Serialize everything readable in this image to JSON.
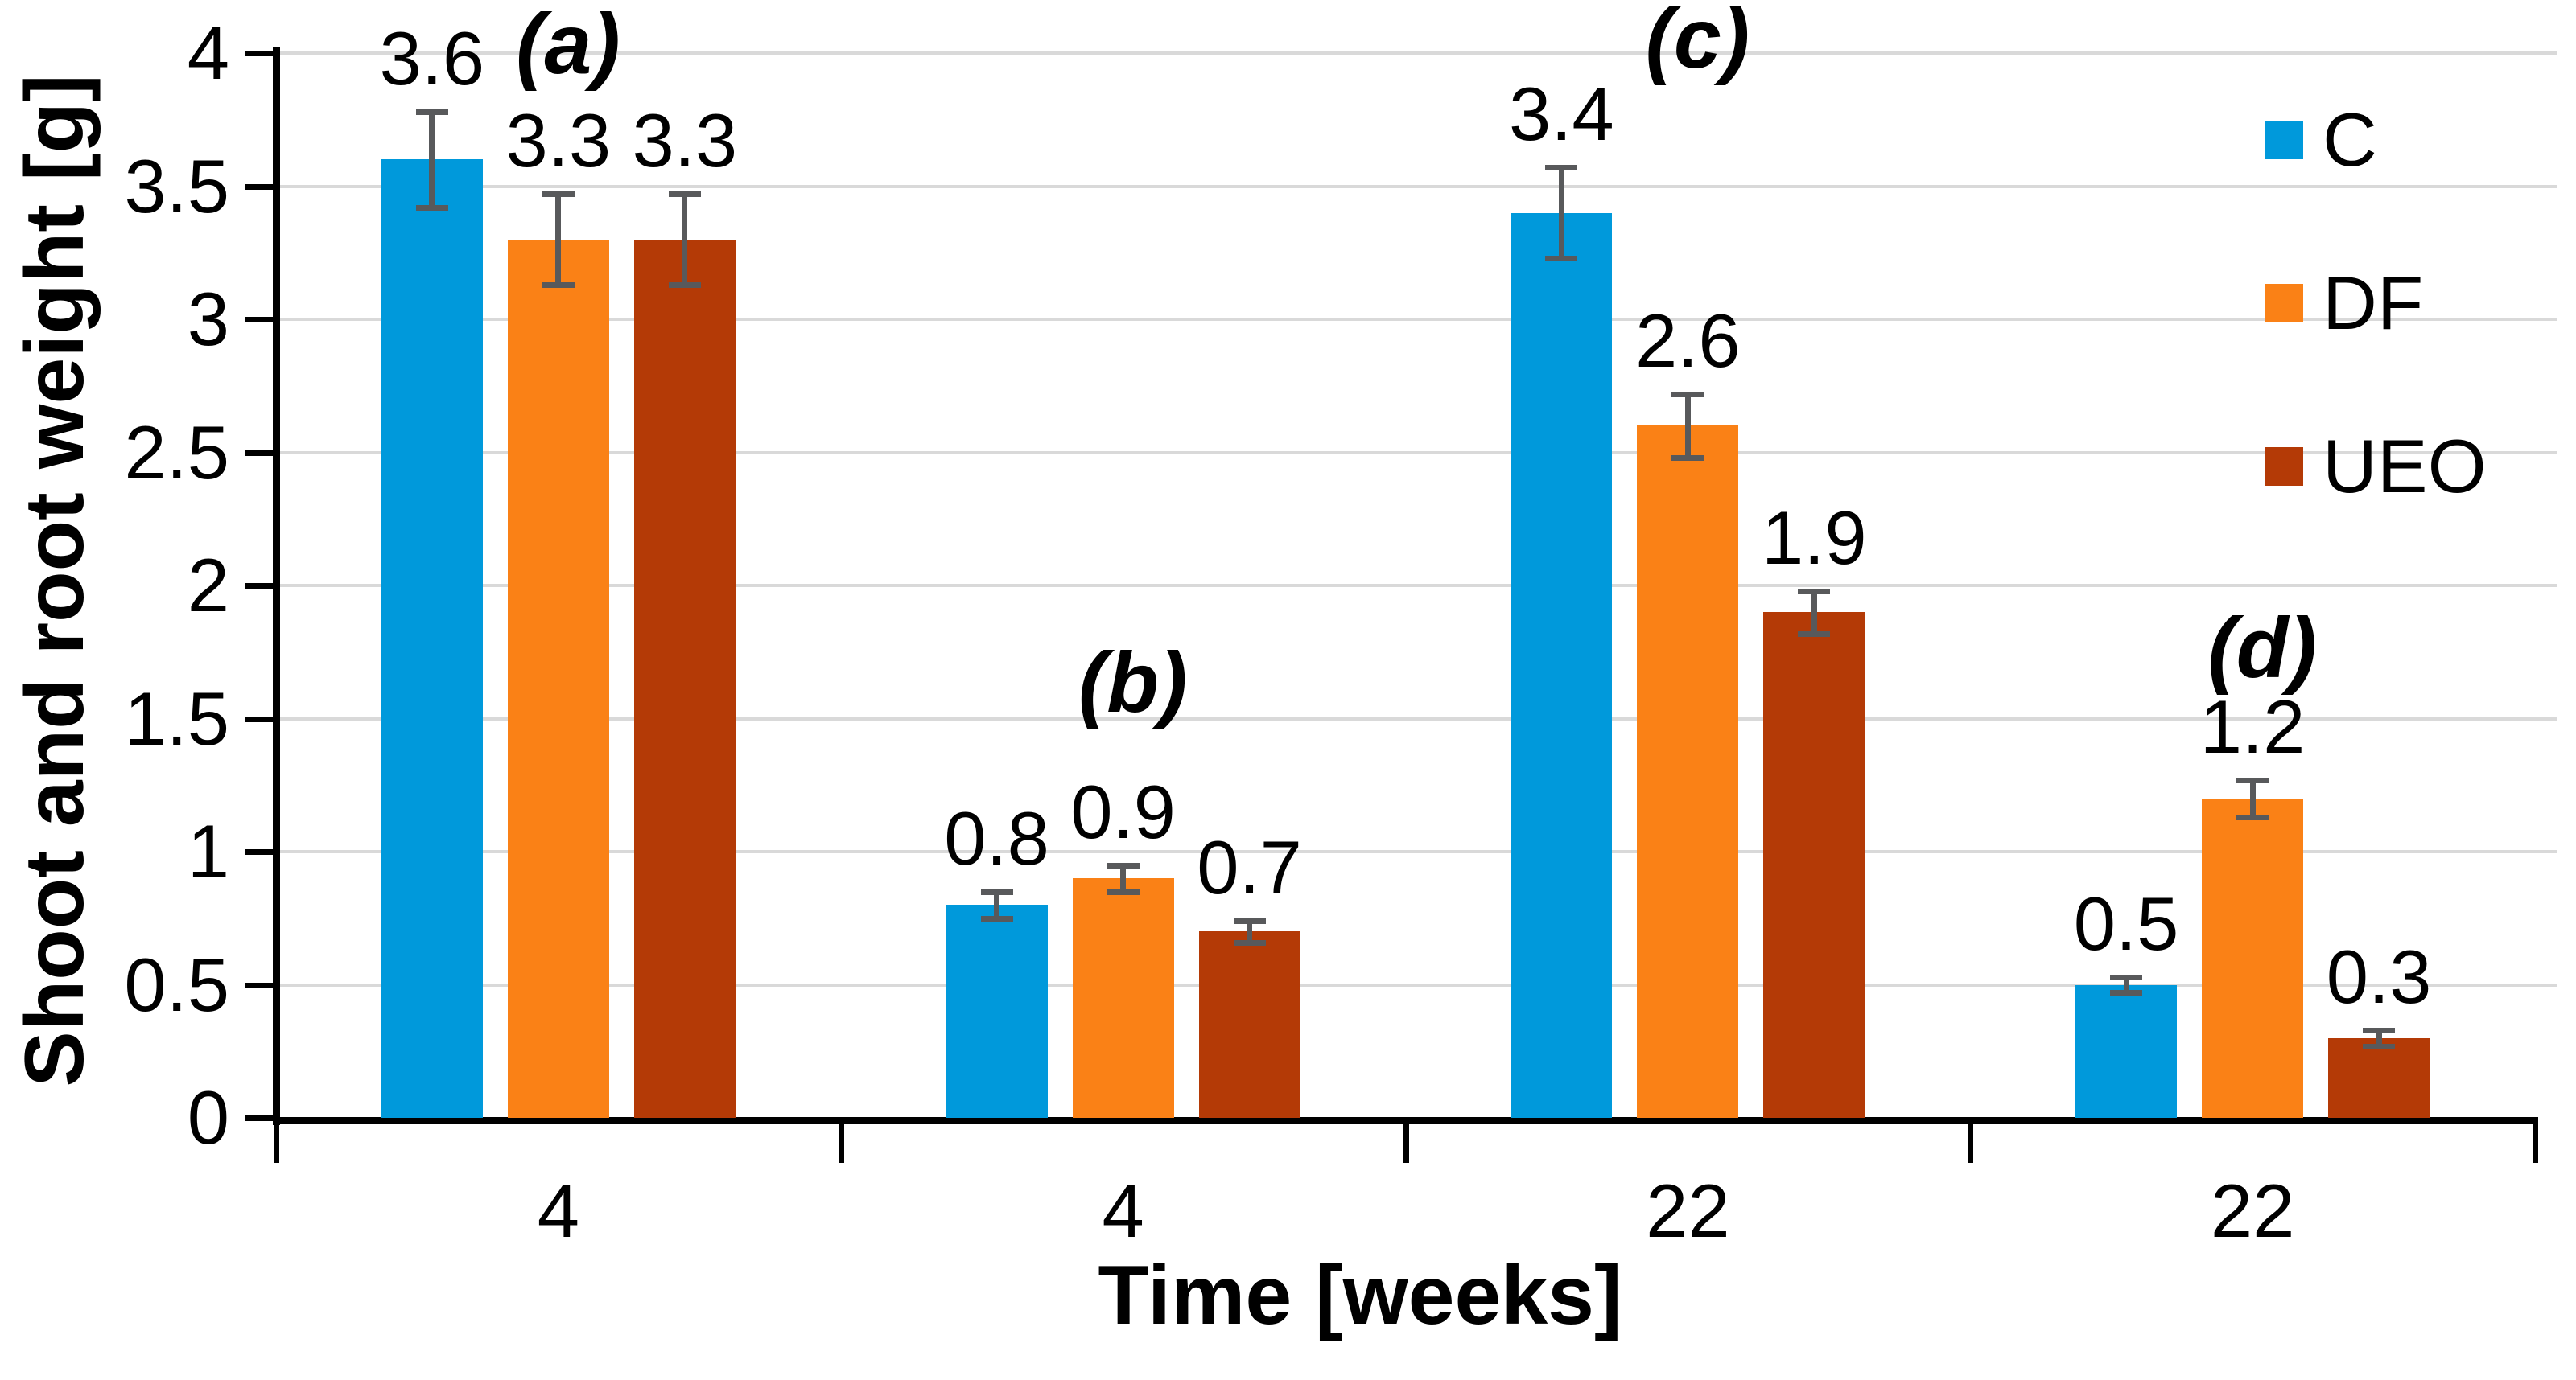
{
  "chart_data": {
    "type": "bar",
    "title": "",
    "xlabel": "Time [weeks]",
    "ylabel": "Shoot and root weight [g]",
    "categories": [
      "4",
      "4",
      "22",
      "22"
    ],
    "series": [
      {
        "name": "C",
        "color": "#0099db",
        "values": [
          3.6,
          0.8,
          3.4,
          0.5
        ],
        "errors": [
          0.18,
          0.05,
          0.17,
          0.03
        ],
        "labels": [
          "3.6",
          "0.8",
          "3.4",
          "0.5"
        ]
      },
      {
        "name": "DF",
        "color": "#fa8116",
        "values": [
          3.3,
          0.9,
          2.6,
          1.2
        ],
        "errors": [
          0.17,
          0.05,
          0.12,
          0.07
        ],
        "labels": [
          "3.3",
          "0.9",
          "2.6",
          "1.2"
        ]
      },
      {
        "name": "UEO",
        "color": "#b43a06",
        "values": [
          3.3,
          0.7,
          1.9,
          0.3
        ],
        "errors": [
          0.17,
          0.04,
          0.08,
          0.03
        ],
        "labels": [
          "3.3",
          "0.7",
          "1.9",
          "0.3"
        ]
      }
    ],
    "annotations": [
      {
        "text": "(a)",
        "category_index": 0,
        "y_value": 3.87
      },
      {
        "text": "(b)",
        "category_index": 1,
        "y_value": 1.47
      },
      {
        "text": "(c)",
        "category_index": 2,
        "y_value": 3.89
      },
      {
        "text": "(d)",
        "category_index": 3,
        "y_value": 1.6
      }
    ],
    "ylim": [
      0,
      4
    ],
    "ytick_values": [
      0,
      0.5,
      1,
      1.5,
      2,
      2.5,
      3,
      3.5,
      4
    ],
    "yticks": [
      "0",
      "0.5",
      "1",
      "1.5",
      "2",
      "2.5",
      "3",
      "3.5",
      "4"
    ],
    "grid": true,
    "legend_position": "upper-right",
    "error_bar_color": "#58595b",
    "gridline_color": "#d9d9d9",
    "axis_color": "#000000",
    "text_color": "#000000",
    "background_color": "#ffffff"
  }
}
